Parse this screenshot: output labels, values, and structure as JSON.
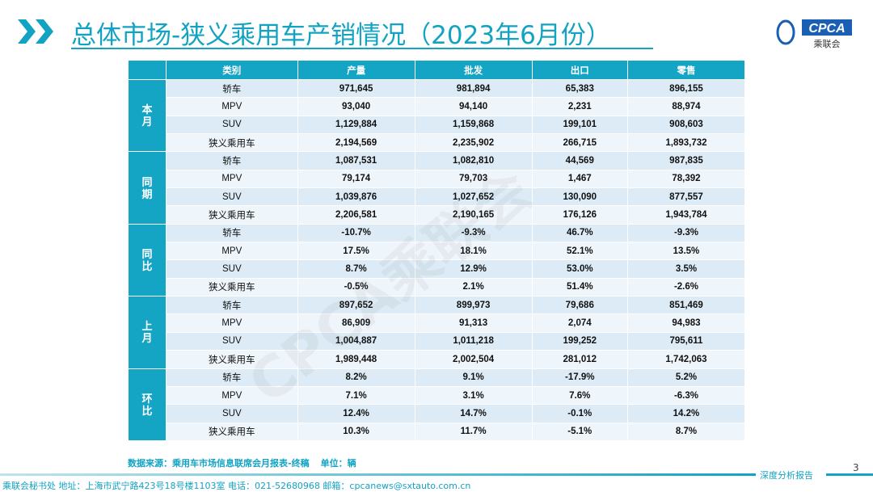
{
  "header": {
    "title": "总体市场-狭义乘用车产销情况（2023年6月份）",
    "logo_text": "CPCA",
    "logo_sub": "乘联会"
  },
  "table": {
    "columns": [
      "类别",
      "产量",
      "批发",
      "出口",
      "零售"
    ],
    "groups": [
      {
        "label": "本月",
        "rows": [
          [
            "轿车",
            "971,645",
            "981,894",
            "65,383",
            "896,155"
          ],
          [
            "MPV",
            "93,040",
            "94,140",
            "2,231",
            "88,974"
          ],
          [
            "SUV",
            "1,129,884",
            "1,159,868",
            "199,101",
            "908,603"
          ],
          [
            "狭义乘用车",
            "2,194,569",
            "2,235,902",
            "266,715",
            "1,893,732"
          ]
        ]
      },
      {
        "label": "同期",
        "rows": [
          [
            "轿车",
            "1,087,531",
            "1,082,810",
            "44,569",
            "987,835"
          ],
          [
            "MPV",
            "79,174",
            "79,703",
            "1,467",
            "78,392"
          ],
          [
            "SUV",
            "1,039,876",
            "1,027,652",
            "130,090",
            "877,557"
          ],
          [
            "狭义乘用车",
            "2,206,581",
            "2,190,165",
            "176,126",
            "1,943,784"
          ]
        ]
      },
      {
        "label": "同比",
        "rows": [
          [
            "轿车",
            "-10.7%",
            "-9.3%",
            "46.7%",
            "-9.3%"
          ],
          [
            "MPV",
            "17.5%",
            "18.1%",
            "52.1%",
            "13.5%"
          ],
          [
            "SUV",
            "8.7%",
            "12.9%",
            "53.0%",
            "3.5%"
          ],
          [
            "狭义乘用车",
            "-0.5%",
            "2.1%",
            "51.4%",
            "-2.6%"
          ]
        ]
      },
      {
        "label": "上月",
        "rows": [
          [
            "轿车",
            "897,652",
            "899,973",
            "79,686",
            "851,469"
          ],
          [
            "MPV",
            "86,909",
            "91,313",
            "2,074",
            "94,983"
          ],
          [
            "SUV",
            "1,004,887",
            "1,011,218",
            "199,252",
            "795,611"
          ],
          [
            "狭义乘用车",
            "1,989,448",
            "2,002,504",
            "281,012",
            "1,742,063"
          ]
        ]
      },
      {
        "label": "环比",
        "rows": [
          [
            "轿车",
            "8.2%",
            "9.1%",
            "-17.9%",
            "5.2%"
          ],
          [
            "MPV",
            "7.1%",
            "3.1%",
            "7.6%",
            "-6.3%"
          ],
          [
            "SUV",
            "12.4%",
            "14.7%",
            "-0.1%",
            "14.2%"
          ],
          [
            "狭义乘用车",
            "10.3%",
            "11.7%",
            "-5.1%",
            "8.7%"
          ]
        ]
      }
    ]
  },
  "watermark": "CPCA乘联会",
  "source": {
    "text": "数据来源：乘用车市场信息联席会月报表-终稿",
    "unit": "单位：辆"
  },
  "footer": {
    "text": "乘联会秘书处  地址：上海市武宁路423号18号楼1103室  电话：021-52680968  邮箱：cpcanews@sxtauto.com.cn",
    "tag": "深度分析报告",
    "page": "3"
  },
  "colors": {
    "accent": "#12a3c3",
    "row_a": "#dcebf5",
    "row_b": "#eef5fb"
  }
}
